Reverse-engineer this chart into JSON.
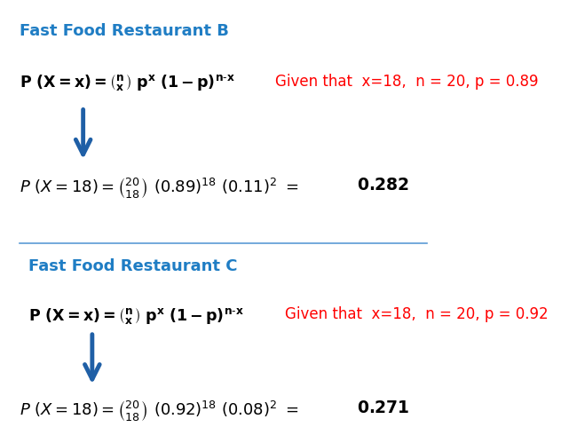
{
  "bg_color": "#ffffff",
  "title_b": "Fast Food Restaurant B",
  "title_c": "Fast Food Restaurant C",
  "title_color": "#1F7DC4",
  "formula_color": "#000000",
  "given_color": "#FF0000",
  "result_color": "#000000",
  "arrow_color": "#1F5FA6",
  "line_color": "#5B9BD5",
  "formula_b_given": "Given that  x=18,  n = 20, p = 0.89",
  "formula_c_given": "Given that  x=18,  n = 20, p = 0.92",
  "result_b": "0.282",
  "result_c": "0.271"
}
